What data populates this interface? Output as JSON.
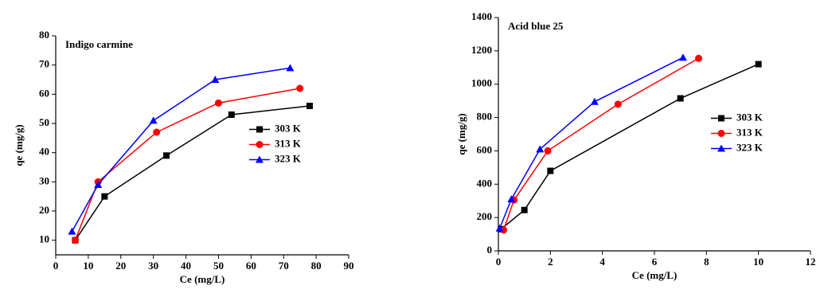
{
  "chart_data": [
    {
      "type": "line",
      "title": "Indigo carmine",
      "x_label": "Ce (mg/L)",
      "y_label": "qe (mg/g)",
      "xlim": [
        0,
        90
      ],
      "xticks": [
        0,
        10,
        20,
        30,
        40,
        50,
        60,
        70,
        80,
        90
      ],
      "ylim": [
        5,
        80
      ],
      "yticks": [
        10,
        20,
        30,
        40,
        50,
        60,
        70,
        80
      ],
      "legend": "right",
      "series": [
        {
          "name": "303 K",
          "color": "#000000",
          "marker": "square",
          "x": [
            6,
            15,
            34,
            54,
            78
          ],
          "values": [
            10,
            25,
            39,
            53,
            56
          ]
        },
        {
          "name": "313 K",
          "color": "#ff0000",
          "marker": "circle",
          "x": [
            6,
            13,
            31,
            50,
            75
          ],
          "values": [
            10,
            30,
            47,
            57,
            62
          ]
        },
        {
          "name": "323 K",
          "color": "#0000ff",
          "marker": "triangle",
          "x": [
            5,
            13,
            30,
            49,
            72
          ],
          "values": [
            13,
            29,
            51,
            65,
            69
          ]
        }
      ]
    },
    {
      "type": "line",
      "title": "Acid blue 25",
      "x_label": "Ce (mg/L)",
      "y_label": "qe (mg/g)",
      "xlim": [
        0,
        12
      ],
      "xticks": [
        0,
        2,
        4,
        6,
        8,
        10,
        12
      ],
      "ylim": [
        0,
        1400
      ],
      "yticks": [
        0,
        200,
        400,
        600,
        800,
        1000,
        1200,
        1400
      ],
      "legend": "right",
      "series": [
        {
          "name": "303 K",
          "color": "#000000",
          "marker": "square",
          "x": [
            0.1,
            1,
            2,
            7,
            10
          ],
          "values": [
            130,
            245,
            480,
            915,
            1120
          ]
        },
        {
          "name": "313 K",
          "color": "#ff0000",
          "marker": "circle",
          "x": [
            0.2,
            0.6,
            1.9,
            4.6,
            7.7
          ],
          "values": [
            125,
            305,
            600,
            880,
            1155
          ]
        },
        {
          "name": "323 K",
          "color": "#0000ff",
          "marker": "triangle",
          "x": [
            0.05,
            0.5,
            1.6,
            3.7,
            7.1
          ],
          "values": [
            135,
            310,
            610,
            895,
            1160
          ]
        }
      ]
    }
  ]
}
